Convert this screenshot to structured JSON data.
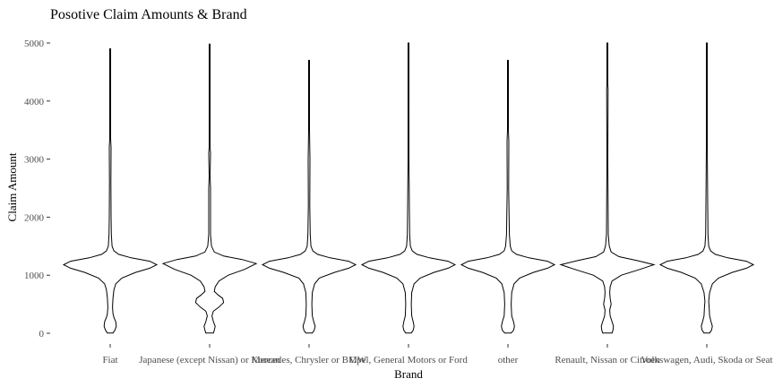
{
  "chart_data": {
    "type": "violin",
    "title": "Posotive Claim Amounts & Brand",
    "xlabel": "Brand",
    "ylabel": "Claim Amount",
    "ylim": [
      0,
      5000
    ],
    "yticks": [
      0,
      1000,
      2000,
      3000,
      4000,
      5000
    ],
    "grid": false,
    "legend": "none",
    "categories": [
      "Fiat",
      "Japanese (except Nissan) or Korean",
      "Mercedes, Chrysler or BMW",
      "Opel, General Motors or Ford",
      "other",
      "Renault, Nissan or Citroen",
      "Volkswagen, Audi, Skoda or Seat"
    ],
    "series": [
      {
        "category": "Fiat",
        "max": 4900,
        "profile": [
          [
            5,
            0.06
          ],
          [
            50,
            0.1
          ],
          [
            120,
            0.13
          ],
          [
            200,
            0.12
          ],
          [
            270,
            0.08
          ],
          [
            340,
            0.06
          ],
          [
            450,
            0.05
          ],
          [
            600,
            0.06
          ],
          [
            750,
            0.08
          ],
          [
            850,
            0.12
          ],
          [
            950,
            0.25
          ],
          [
            1050,
            0.55
          ],
          [
            1120,
            0.85
          ],
          [
            1180,
            1.0
          ],
          [
            1240,
            0.85
          ],
          [
            1300,
            0.45
          ],
          [
            1360,
            0.18
          ],
          [
            1420,
            0.08
          ],
          [
            1500,
            0.04
          ],
          [
            1700,
            0.025
          ],
          [
            2000,
            0.02
          ],
          [
            2600,
            0.015
          ],
          [
            3200,
            0.02
          ],
          [
            3350,
            0.01
          ],
          [
            3500,
            0.006
          ],
          [
            4200,
            0.01
          ],
          [
            4300,
            0.005
          ],
          [
            4500,
            0.004
          ],
          [
            4900,
            0.0
          ]
        ]
      },
      {
        "category": "Japanese (except Nissan) or Korean",
        "max": 4980,
        "profile": [
          [
            5,
            0.08
          ],
          [
            50,
            0.1
          ],
          [
            120,
            0.12
          ],
          [
            200,
            0.08
          ],
          [
            300,
            0.05
          ],
          [
            380,
            0.08
          ],
          [
            450,
            0.2
          ],
          [
            530,
            0.3
          ],
          [
            600,
            0.28
          ],
          [
            660,
            0.18
          ],
          [
            720,
            0.1
          ],
          [
            800,
            0.12
          ],
          [
            900,
            0.2
          ],
          [
            1000,
            0.4
          ],
          [
            1100,
            0.75
          ],
          [
            1200,
            1.0
          ],
          [
            1270,
            0.7
          ],
          [
            1330,
            0.3
          ],
          [
            1400,
            0.1
          ],
          [
            1500,
            0.04
          ],
          [
            1700,
            0.02
          ],
          [
            2500,
            0.02
          ],
          [
            2700,
            0.01
          ],
          [
            3100,
            0.02
          ],
          [
            3200,
            0.005
          ],
          [
            4000,
            0.004
          ],
          [
            4980,
            0.0
          ]
        ]
      },
      {
        "category": "Mercedes, Chrysler or BMW",
        "max": 4700,
        "profile": [
          [
            5,
            0.07
          ],
          [
            50,
            0.11
          ],
          [
            120,
            0.13
          ],
          [
            200,
            0.1
          ],
          [
            300,
            0.07
          ],
          [
            500,
            0.06
          ],
          [
            700,
            0.07
          ],
          [
            850,
            0.12
          ],
          [
            950,
            0.22
          ],
          [
            1050,
            0.55
          ],
          [
            1120,
            0.85
          ],
          [
            1180,
            1.0
          ],
          [
            1240,
            0.85
          ],
          [
            1300,
            0.45
          ],
          [
            1360,
            0.18
          ],
          [
            1420,
            0.08
          ],
          [
            1500,
            0.04
          ],
          [
            1700,
            0.025
          ],
          [
            2200,
            0.015
          ],
          [
            3000,
            0.02
          ],
          [
            3500,
            0.005
          ],
          [
            4300,
            0.005
          ],
          [
            4700,
            0.0
          ]
        ]
      },
      {
        "category": "Opel, General Motors or Ford",
        "max": 5000,
        "profile": [
          [
            5,
            0.06
          ],
          [
            50,
            0.1
          ],
          [
            120,
            0.12
          ],
          [
            200,
            0.1
          ],
          [
            300,
            0.07
          ],
          [
            500,
            0.06
          ],
          [
            700,
            0.07
          ],
          [
            850,
            0.12
          ],
          [
            950,
            0.25
          ],
          [
            1050,
            0.55
          ],
          [
            1120,
            0.85
          ],
          [
            1180,
            1.0
          ],
          [
            1240,
            0.85
          ],
          [
            1300,
            0.45
          ],
          [
            1360,
            0.18
          ],
          [
            1420,
            0.08
          ],
          [
            1500,
            0.04
          ],
          [
            1700,
            0.025
          ],
          [
            2100,
            0.02
          ],
          [
            2500,
            0.015
          ],
          [
            3000,
            0.004
          ],
          [
            5000,
            0.002
          ]
        ]
      },
      {
        "category": "other",
        "max": 4700,
        "profile": [
          [
            5,
            0.07
          ],
          [
            50,
            0.12
          ],
          [
            120,
            0.14
          ],
          [
            200,
            0.12
          ],
          [
            300,
            0.08
          ],
          [
            500,
            0.07
          ],
          [
            700,
            0.08
          ],
          [
            850,
            0.13
          ],
          [
            950,
            0.25
          ],
          [
            1050,
            0.55
          ],
          [
            1120,
            0.85
          ],
          [
            1180,
            1.0
          ],
          [
            1240,
            0.85
          ],
          [
            1300,
            0.45
          ],
          [
            1360,
            0.18
          ],
          [
            1420,
            0.08
          ],
          [
            1500,
            0.05
          ],
          [
            1700,
            0.03
          ],
          [
            2000,
            0.025
          ],
          [
            2500,
            0.015
          ],
          [
            3300,
            0.02
          ],
          [
            3500,
            0.005
          ],
          [
            4000,
            0.01
          ],
          [
            4500,
            0.004
          ],
          [
            4700,
            0.0
          ]
        ]
      },
      {
        "category": "Renault, Nissan or Citroen",
        "max": 5000,
        "profile": [
          [
            5,
            0.1
          ],
          [
            50,
            0.12
          ],
          [
            120,
            0.13
          ],
          [
            200,
            0.1
          ],
          [
            300,
            0.06
          ],
          [
            400,
            0.05
          ],
          [
            500,
            0.08
          ],
          [
            560,
            0.07
          ],
          [
            600,
            0.06
          ],
          [
            700,
            0.05
          ],
          [
            800,
            0.06
          ],
          [
            900,
            0.1
          ],
          [
            1000,
            0.3
          ],
          [
            1100,
            0.7
          ],
          [
            1180,
            1.0
          ],
          [
            1250,
            0.65
          ],
          [
            1320,
            0.25
          ],
          [
            1400,
            0.08
          ],
          [
            1500,
            0.04
          ],
          [
            1700,
            0.02
          ],
          [
            3000,
            0.01
          ],
          [
            4200,
            0.015
          ],
          [
            4300,
            0.004
          ],
          [
            5000,
            0.0
          ]
        ]
      },
      {
        "category": "Volkswagen, Audi, Skoda or Seat",
        "max": 5000,
        "profile": [
          [
            5,
            0.06
          ],
          [
            50,
            0.1
          ],
          [
            120,
            0.12
          ],
          [
            200,
            0.09
          ],
          [
            300,
            0.06
          ],
          [
            450,
            0.05
          ],
          [
            550,
            0.04
          ],
          [
            700,
            0.06
          ],
          [
            850,
            0.12
          ],
          [
            950,
            0.25
          ],
          [
            1050,
            0.55
          ],
          [
            1120,
            0.85
          ],
          [
            1180,
            1.0
          ],
          [
            1240,
            0.85
          ],
          [
            1300,
            0.45
          ],
          [
            1360,
            0.18
          ],
          [
            1420,
            0.08
          ],
          [
            1500,
            0.04
          ],
          [
            1700,
            0.025
          ],
          [
            2200,
            0.02
          ],
          [
            2600,
            0.015
          ],
          [
            3200,
            0.01
          ],
          [
            4000,
            0.008
          ],
          [
            5000,
            0.004
          ]
        ]
      }
    ]
  }
}
